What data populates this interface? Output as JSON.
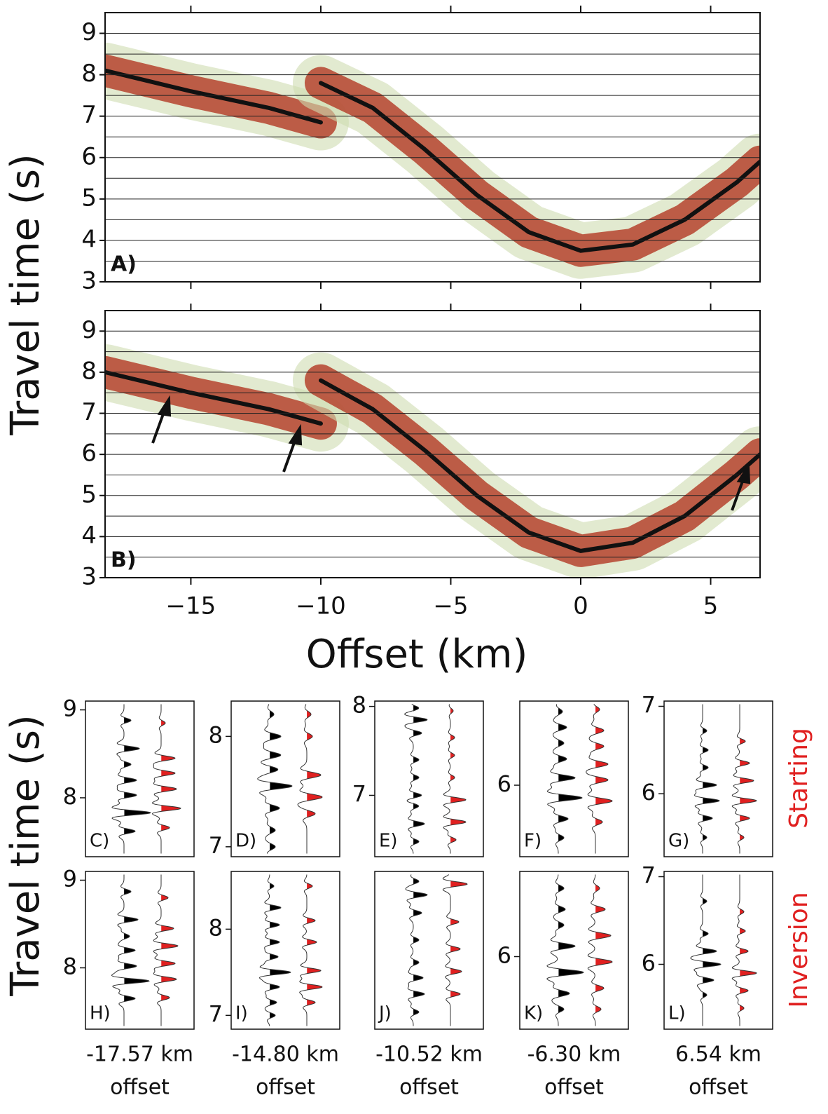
{
  "y_axis_label": "Travel time (s)",
  "x_axis_label": "Offset (km)",
  "row_labels": [
    "Starting",
    "Inversion"
  ],
  "captions": [
    [
      "-17.57 km",
      "offset"
    ],
    [
      "-14.80 km",
      "offset"
    ],
    [
      "-10.52 km",
      "offset"
    ],
    [
      "-6.30 km",
      "offset"
    ],
    [
      "6.54 km",
      "offset"
    ]
  ],
  "chart_data": [
    {
      "type": "seismic",
      "panel_label": "A)",
      "xlim": [
        -18.3,
        6.9
      ],
      "ylim": [
        3,
        9.5
      ],
      "yticks": [
        3,
        4,
        5,
        6,
        7,
        8,
        9
      ],
      "ygrid": [
        3.5,
        4,
        4.5,
        5,
        5.5,
        6,
        6.5,
        7,
        7.5,
        8,
        8.5,
        9
      ],
      "xticks": [
        -15,
        -10,
        -5,
        0,
        5
      ],
      "xtick_labels": false,
      "series": [
        {
          "color": "#111111",
          "band_color": "#b5432e",
          "halo_color": "#cfdcb0",
          "x": [
            -18.3,
            -15,
            -12,
            -10
          ],
          "values": [
            8.1,
            7.6,
            7.2,
            6.85
          ]
        },
        {
          "color": "#111111",
          "band_color": "#b5432e",
          "halo_color": "#cfdcb0",
          "x": [
            -10,
            -8,
            -6,
            -4,
            -2,
            0,
            2,
            4,
            6,
            6.9
          ],
          "values": [
            7.8,
            7.2,
            6.2,
            5.1,
            4.2,
            3.75,
            3.9,
            4.5,
            5.4,
            5.9
          ]
        }
      ]
    },
    {
      "type": "seismic",
      "panel_label": "B)",
      "xlim": [
        -18.3,
        6.9
      ],
      "ylim": [
        3,
        9.5
      ],
      "yticks": [
        3,
        4,
        5,
        6,
        7,
        8,
        9
      ],
      "ygrid": [
        3.5,
        4,
        4.5,
        5,
        5.5,
        6,
        6.5,
        7,
        7.5,
        8,
        8.5,
        9
      ],
      "xticks": [
        {
          "value": -15,
          "label": "−15"
        },
        {
          "value": -10,
          "label": "−10"
        },
        {
          "value": -5,
          "label": "−5"
        },
        0,
        5
      ],
      "xtick_labels": true,
      "series": [
        {
          "color": "#111111",
          "band_color": "#b5432e",
          "halo_color": "#cfdcb0",
          "x": [
            -18.3,
            -15,
            -12,
            -10
          ],
          "values": [
            8.0,
            7.5,
            7.1,
            6.75
          ]
        },
        {
          "color": "#111111",
          "band_color": "#b5432e",
          "halo_color": "#cfdcb0",
          "x": [
            -10,
            -8,
            -6,
            -4,
            -2,
            0,
            2,
            4,
            6,
            6.9
          ],
          "values": [
            7.8,
            7.1,
            6.1,
            5.0,
            4.1,
            3.65,
            3.85,
            4.5,
            5.5,
            6.0
          ]
        }
      ]
    },
    {
      "type": "wiggle",
      "panel_label": "C)",
      "ylim": [
        7.33,
        9.1
      ],
      "yticks": [
        9,
        8
      ],
      "traces": [
        {
          "color": "#000000",
          "times": [
            8.88,
            8.56,
            8.38,
            8.2,
            8.03,
            7.83,
            7.62
          ],
          "amplitudes": [
            0.25,
            0.55,
            0.25,
            0.45,
            0.45,
            0.95,
            0.4
          ]
        },
        {
          "color": "#e02020",
          "times": [
            8.85,
            8.45,
            8.28,
            8.1,
            7.88,
            7.66
          ],
          "amplitudes": [
            0.15,
            0.5,
            0.5,
            0.55,
            0.7,
            0.3
          ]
        }
      ]
    },
    {
      "type": "wiggle",
      "panel_label": "D)",
      "ylim": [
        6.91,
        8.32
      ],
      "yticks": [
        8,
        7
      ],
      "traces": [
        {
          "color": "#000000",
          "times": [
            8.2,
            8.0,
            7.83,
            7.7,
            7.55,
            7.35,
            7.15,
            7.0
          ],
          "amplitudes": [
            0.15,
            0.4,
            0.4,
            0.3,
            0.8,
            0.35,
            0.2,
            0.2
          ]
        },
        {
          "color": "#e02020",
          "times": [
            8.2,
            8.0,
            7.65,
            7.45,
            7.3
          ],
          "amplitudes": [
            0.15,
            0.2,
            0.5,
            0.55,
            0.3
          ]
        }
      ]
    },
    {
      "type": "wiggle",
      "panel_label": "E)",
      "ylim": [
        6.31,
        8.06
      ],
      "yticks": [
        8,
        7
      ],
      "traces": [
        {
          "color": "#000000",
          "times": [
            7.98,
            7.85,
            7.7,
            7.4,
            7.2,
            7.0,
            6.88,
            6.68,
            6.48
          ],
          "amplitudes": [
            0.2,
            0.5,
            0.3,
            0.2,
            0.2,
            0.3,
            0.2,
            0.4,
            0.2
          ]
        },
        {
          "color": "#e02020",
          "times": [
            7.95,
            7.65,
            7.45,
            7.2,
            6.95,
            6.7,
            6.5
          ],
          "amplitudes": [
            0.1,
            0.15,
            0.15,
            0.15,
            0.55,
            0.55,
            0.2
          ]
        }
      ]
    },
    {
      "type": "wiggle",
      "panel_label": "F)",
      "ylim": [
        5.32,
        6.8
      ],
      "yticks": [
        6
      ],
      "traces": [
        {
          "color": "#000000",
          "times": [
            6.7,
            6.55,
            6.4,
            6.25,
            6.07,
            5.88,
            5.68,
            5.5
          ],
          "amplitudes": [
            0.15,
            0.3,
            0.2,
            0.3,
            0.6,
            0.85,
            0.35,
            0.2
          ]
        },
        {
          "color": "#e02020",
          "times": [
            6.72,
            6.52,
            6.37,
            6.2,
            6.05,
            5.85,
            5.65
          ],
          "amplitudes": [
            0.15,
            0.3,
            0.3,
            0.45,
            0.45,
            0.6,
            0.25
          ]
        }
      ]
    },
    {
      "type": "wiggle",
      "panel_label": "G)",
      "ylim": [
        5.28,
        7.06
      ],
      "yticks": [
        7,
        6
      ],
      "traces": [
        {
          "color": "#000000",
          "times": [
            6.72,
            6.5,
            6.3,
            6.1,
            5.92,
            5.72,
            5.5
          ],
          "amplitudes": [
            0.15,
            0.2,
            0.2,
            0.5,
            0.6,
            0.35,
            0.15
          ]
        },
        {
          "color": "#e02020",
          "times": [
            6.6,
            6.35,
            6.15,
            5.92,
            5.72,
            5.5
          ],
          "amplitudes": [
            0.2,
            0.35,
            0.5,
            0.6,
            0.35,
            0.15
          ]
        }
      ]
    },
    {
      "type": "wiggle",
      "panel_label": "H)",
      "ylim": [
        7.3,
        9.1
      ],
      "yticks": [
        9,
        8
      ],
      "traces": [
        {
          "color": "#000000",
          "times": [
            8.87,
            8.55,
            8.36,
            8.2,
            8.02,
            7.85,
            7.65
          ],
          "amplitudes": [
            0.25,
            0.5,
            0.2,
            0.4,
            0.45,
            0.9,
            0.4
          ]
        },
        {
          "color": "#e02020",
          "times": [
            8.8,
            8.45,
            8.25,
            8.05,
            7.87,
            7.66
          ],
          "amplitudes": [
            0.25,
            0.45,
            0.6,
            0.5,
            0.55,
            0.3
          ]
        }
      ]
    },
    {
      "type": "wiggle",
      "panel_label": "I)",
      "ylim": [
        6.84,
        8.67
      ],
      "yticks": [
        8,
        7
      ],
      "traces": [
        {
          "color": "#000000",
          "times": [
            8.5,
            8.25,
            8.05,
            7.85,
            7.68,
            7.5,
            7.33,
            7.15,
            7.0
          ],
          "amplitudes": [
            0.15,
            0.4,
            0.35,
            0.35,
            0.3,
            0.75,
            0.35,
            0.25,
            0.2
          ]
        },
        {
          "color": "#e02020",
          "times": [
            8.5,
            8.1,
            7.85,
            7.52,
            7.33,
            7.15
          ],
          "amplitudes": [
            0.2,
            0.3,
            0.35,
            0.5,
            0.55,
            0.3
          ]
        }
      ]
    },
    {
      "type": "wiggle",
      "panel_label": "J)",
      "ylim": [
        6.31,
        8.06
      ],
      "yticks": [],
      "traces": [
        {
          "color": "#000000",
          "times": [
            7.95,
            7.8,
            7.6,
            7.3,
            7.05,
            6.88,
            6.7,
            6.5
          ],
          "amplitudes": [
            0.2,
            0.5,
            0.3,
            0.2,
            0.2,
            0.35,
            0.4,
            0.2
          ]
        },
        {
          "color": "#e02020",
          "times": [
            7.92,
            7.5,
            7.2,
            6.95,
            6.7
          ],
          "amplitudes": [
            0.6,
            0.3,
            0.35,
            0.4,
            0.35
          ]
        }
      ]
    },
    {
      "type": "wiggle",
      "panel_label": "K)",
      "ylim": [
        5.31,
        6.81
      ],
      "yticks": [
        6
      ],
      "traces": [
        {
          "color": "#000000",
          "times": [
            6.65,
            6.45,
            6.3,
            6.1,
            5.85,
            5.65,
            5.5
          ],
          "amplitudes": [
            0.2,
            0.25,
            0.2,
            0.6,
            0.9,
            0.4,
            0.2
          ]
        },
        {
          "color": "#e02020",
          "times": [
            6.65,
            6.45,
            6.2,
            5.95,
            5.7,
            5.5
          ],
          "amplitudes": [
            0.15,
            0.35,
            0.55,
            0.6,
            0.3,
            0.2
          ]
        }
      ]
    },
    {
      "type": "wiggle",
      "panel_label": "L)",
      "ylim": [
        5.26,
        7.06
      ],
      "yticks": [
        7,
        6
      ],
      "traces": [
        {
          "color": "#000000",
          "times": [
            6.72,
            6.35,
            6.15,
            6.0,
            5.82,
            5.65
          ],
          "amplitudes": [
            0.15,
            0.2,
            0.5,
            0.65,
            0.4,
            0.15
          ]
        },
        {
          "color": "#e02020",
          "times": [
            6.6,
            6.38,
            6.15,
            5.9,
            5.7,
            5.5
          ],
          "amplitudes": [
            0.15,
            0.2,
            0.3,
            0.6,
            0.3,
            0.15
          ]
        }
      ]
    }
  ]
}
